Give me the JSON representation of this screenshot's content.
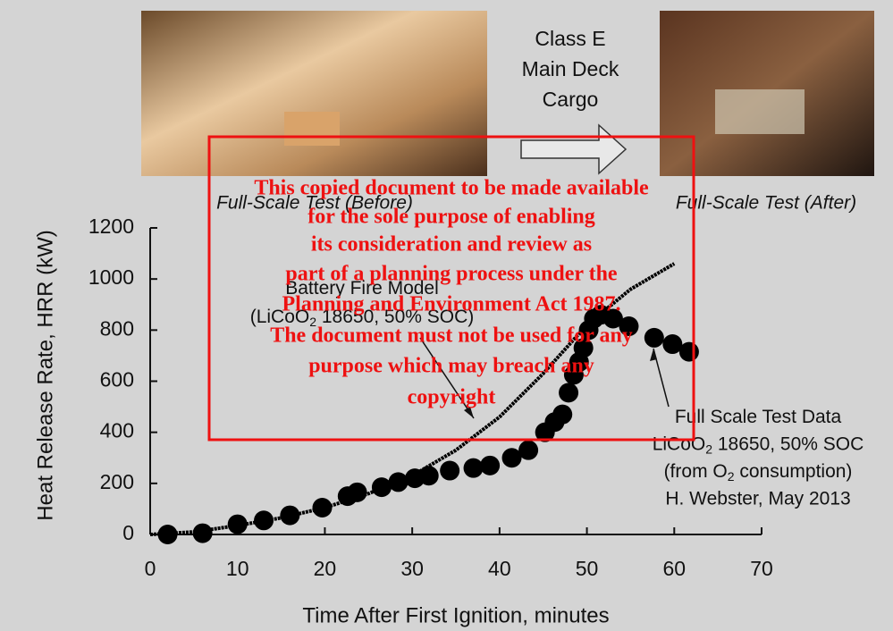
{
  "header": {
    "center_lines": [
      "Class E",
      "Main Deck",
      "Cargo"
    ],
    "caption_left": "Full-Scale Test (Before)",
    "caption_right": "Full-Scale Test (After)"
  },
  "watermark": {
    "lines": [
      "This copied document to be made available",
      "for the sole purpose of enabling",
      "its consideration and review as",
      "part of a planning process under the",
      "Planning and Environment Act 1987.",
      "The document must not be used for any",
      "purpose which may breach any",
      "copyright"
    ]
  },
  "chart_data": {
    "type": "line",
    "x_label": "Time After First Ignition, minutes",
    "y_label": "Heat Release Rate, HRR (kW)",
    "xlim": [
      0,
      70
    ],
    "xticks": [
      0,
      10,
      20,
      30,
      40,
      50,
      60,
      70
    ],
    "ylim": [
      0,
      1200
    ],
    "yticks": [
      0,
      200,
      400,
      600,
      800,
      1000,
      1200
    ],
    "series": [
      {
        "mode": "line",
        "color": "#000000",
        "x": [
          0,
          5,
          10,
          15,
          20,
          25,
          30,
          35,
          40,
          45,
          50,
          55,
          60
        ],
        "values": [
          0,
          10,
          35,
          65,
          105,
          160,
          230,
          330,
          460,
          630,
          820,
          960,
          1060
        ]
      },
      {
        "mode": "markers",
        "color": "#000000",
        "x": [
          2.0,
          6.0,
          10.0,
          13.0,
          16.0,
          19.7,
          22.6,
          23.7,
          26.5,
          28.4,
          30.3,
          31.9,
          34.3,
          37.0,
          38.9,
          41.4,
          43.3,
          45.2,
          46.3,
          47.2,
          47.9,
          48.5,
          49.1,
          49.6,
          50.2,
          50.8,
          51.6,
          53.0,
          54.8,
          57.7,
          59.8,
          61.7
        ],
        "values": [
          0,
          5,
          40,
          55,
          75,
          105,
          150,
          165,
          185,
          205,
          220,
          230,
          250,
          260,
          270,
          300,
          330,
          400,
          440,
          470,
          555,
          625,
          675,
          730,
          800,
          845,
          860,
          845,
          815,
          770,
          745,
          715
        ]
      }
    ],
    "annotations": [
      {
        "lines": [
          [
            "Battery Fire Model"
          ],
          [
            "(LiCoO",
            "2",
            " 18650, 50% SOC)"
          ]
        ]
      },
      {
        "lines": [
          [
            "Full Scale Test Data"
          ],
          [
            "LiCoO",
            "2",
            " 18650, 50% SOC"
          ],
          [
            "(from O",
            "2",
            " consumption)"
          ],
          [
            "H. Webster, May 2013"
          ]
        ]
      }
    ]
  }
}
